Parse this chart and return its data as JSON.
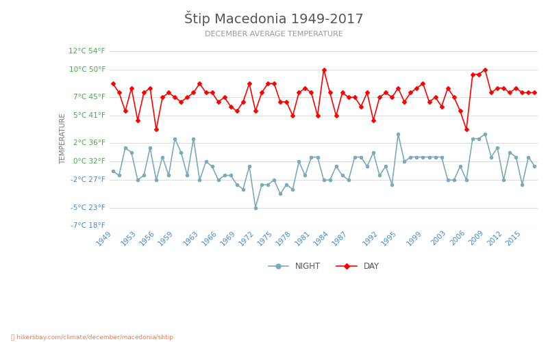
{
  "title": "Štip Macedonia 1949-2017",
  "subtitle": "DECEMBER AVERAGE TEMPERATURE",
  "ylabel": "TEMPERATURE",
  "watermark": "hikersbay.com/climate/december/macedonia/shtip",
  "title_color": "#555555",
  "subtitle_color": "#999999",
  "ylabel_color": "#777777",
  "background_color": "#ffffff",
  "grid_color": "#dddddd",
  "years": [
    1949,
    1950,
    1951,
    1952,
    1953,
    1954,
    1955,
    1956,
    1957,
    1958,
    1959,
    1960,
    1961,
    1962,
    1963,
    1964,
    1965,
    1966,
    1967,
    1968,
    1969,
    1970,
    1971,
    1972,
    1973,
    1974,
    1975,
    1976,
    1977,
    1978,
    1979,
    1980,
    1981,
    1982,
    1983,
    1984,
    1985,
    1986,
    1987,
    1988,
    1989,
    1990,
    1991,
    1992,
    1993,
    1994,
    1995,
    1996,
    1997,
    1998,
    1999,
    2000,
    2001,
    2002,
    2003,
    2004,
    2005,
    2006,
    2007,
    2008,
    2009,
    2010,
    2011,
    2012,
    2013,
    2014,
    2015,
    2016,
    2017
  ],
  "day_temps": [
    8.5,
    7.5,
    5.5,
    8.0,
    4.5,
    7.5,
    8.0,
    3.5,
    7.0,
    7.5,
    7.0,
    6.5,
    7.0,
    7.5,
    8.5,
    7.5,
    7.5,
    6.5,
    7.0,
    6.0,
    5.5,
    6.5,
    8.5,
    5.5,
    7.5,
    8.5,
    8.5,
    6.5,
    6.5,
    5.0,
    7.5,
    8.0,
    7.5,
    5.0,
    10.0,
    7.5,
    5.0,
    7.5,
    7.0,
    7.0,
    6.0,
    7.5,
    4.5,
    7.0,
    7.5,
    7.0,
    8.0,
    6.5,
    7.5,
    8.0,
    8.5,
    6.5,
    7.0,
    6.0,
    8.0,
    7.0,
    5.5,
    3.5,
    9.5,
    9.5,
    10.0,
    7.5,
    8.0,
    8.0,
    7.5,
    8.0,
    7.5,
    7.5,
    7.5
  ],
  "night_temps": [
    -1.0,
    -1.5,
    1.5,
    1.0,
    -2.0,
    -1.5,
    1.5,
    -2.0,
    0.5,
    -1.5,
    2.5,
    1.0,
    -1.5,
    2.5,
    -2.0,
    0.0,
    -0.5,
    -2.0,
    -1.5,
    -1.5,
    -2.5,
    -3.0,
    -0.5,
    -5.0,
    -2.5,
    -2.5,
    -2.0,
    -3.5,
    -2.5,
    -3.0,
    0.0,
    -1.5,
    0.5,
    0.5,
    -2.0,
    -2.0,
    -0.5,
    -1.5,
    -2.0,
    0.5,
    0.5,
    -0.5,
    1.0,
    -1.5,
    -0.5,
    -2.5,
    3.0,
    0.0,
    0.5,
    0.5,
    0.5,
    0.5,
    0.5,
    0.5,
    -2.0,
    -2.0,
    -0.5,
    -2.0,
    2.5,
    2.5,
    3.0,
    0.5,
    1.5,
    -2.0,
    1.0,
    0.5,
    -2.5,
    0.5,
    -0.5
  ],
  "day_color": "#ff0000",
  "night_color": "#7aaabb",
  "marker_size": 3,
  "ylim_min": -7,
  "ylim_max": 12,
  "yticks_celsius": [
    -7,
    -5,
    -2,
    0,
    2,
    5,
    7,
    10,
    12
  ],
  "yticks_fahrenheit": [
    18,
    23,
    27,
    32,
    36,
    41,
    45,
    50,
    54
  ],
  "celsius_color": "#4488cc",
  "fahrenheit_color": "#44aa44",
  "xtick_years": [
    1949,
    1953,
    1956,
    1959,
    1963,
    1966,
    1969,
    1972,
    1975,
    1978,
    1981,
    1984,
    1987,
    1992,
    1995,
    1999,
    2003,
    2006,
    2009,
    2012,
    2015
  ]
}
